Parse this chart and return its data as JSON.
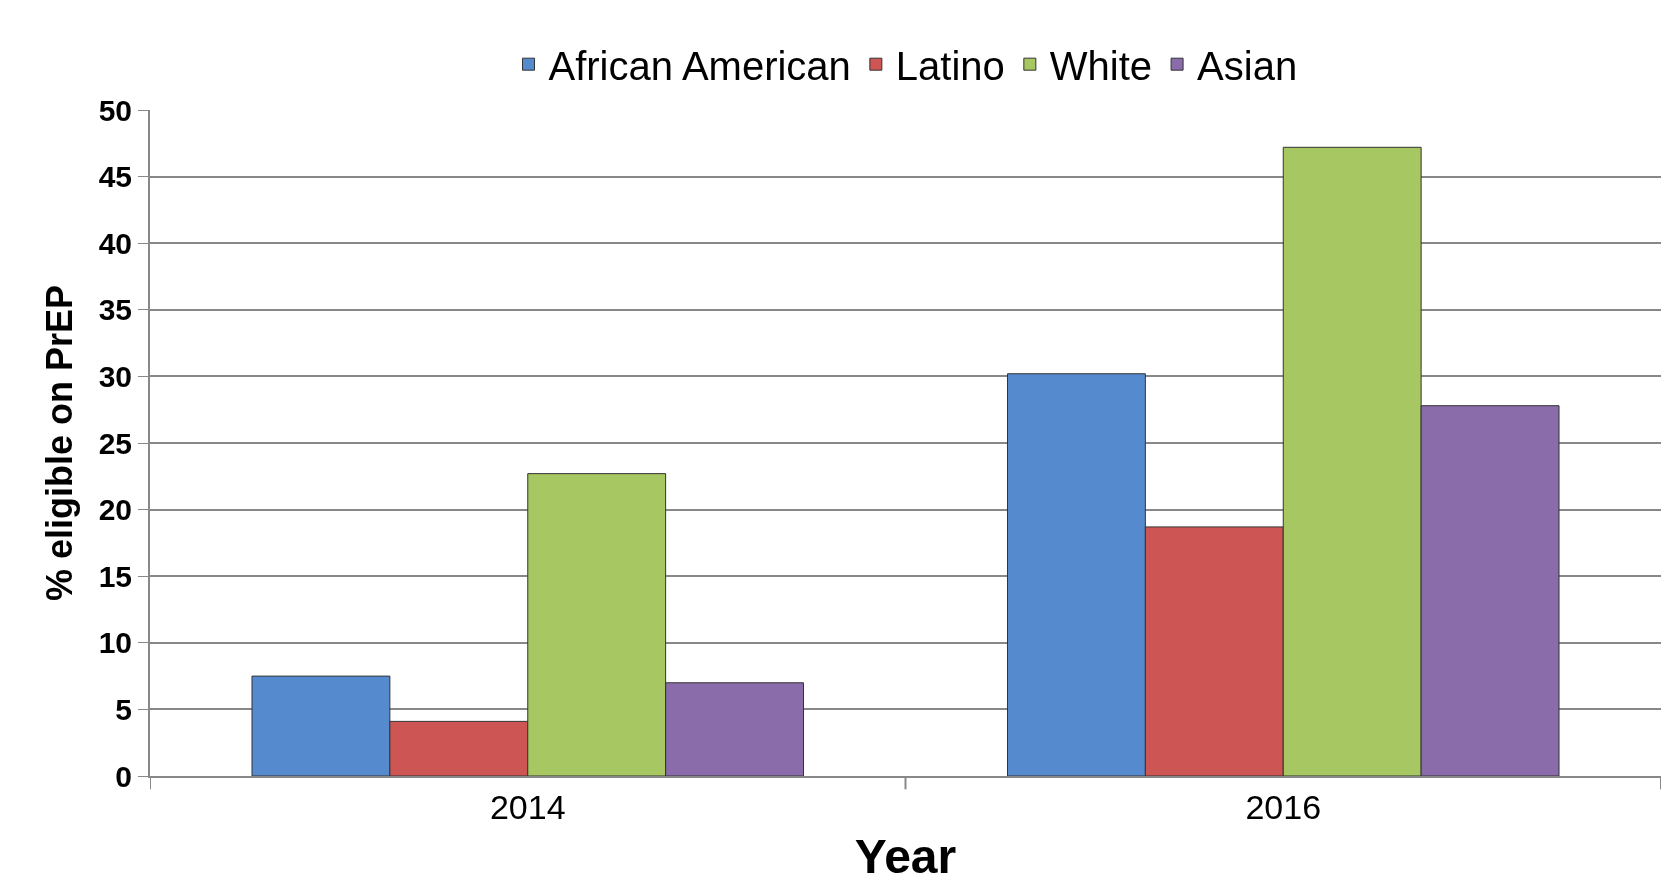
{
  "chart_data": {
    "type": "bar",
    "xlabel": "Year",
    "ylabel": "% eligible on PrEP",
    "categories": [
      "2014",
      "2016"
    ],
    "series": [
      {
        "name": "African American",
        "color": "#558ace",
        "values": [
          7.5,
          30.2
        ]
      },
      {
        "name": "Latino",
        "color": "#cd5654",
        "values": [
          4.1,
          18.7
        ]
      },
      {
        "name": "White",
        "color": "#a6c762",
        "values": [
          22.7,
          47.2
        ]
      },
      {
        "name": "Asian",
        "color": "#8a6cab",
        "values": [
          7.0,
          27.8
        ]
      }
    ],
    "ylim": [
      0,
      50
    ],
    "yticks": [
      0,
      5,
      10,
      15,
      20,
      25,
      30,
      35,
      40,
      45,
      50
    ],
    "grid": "y",
    "legend": "top"
  }
}
